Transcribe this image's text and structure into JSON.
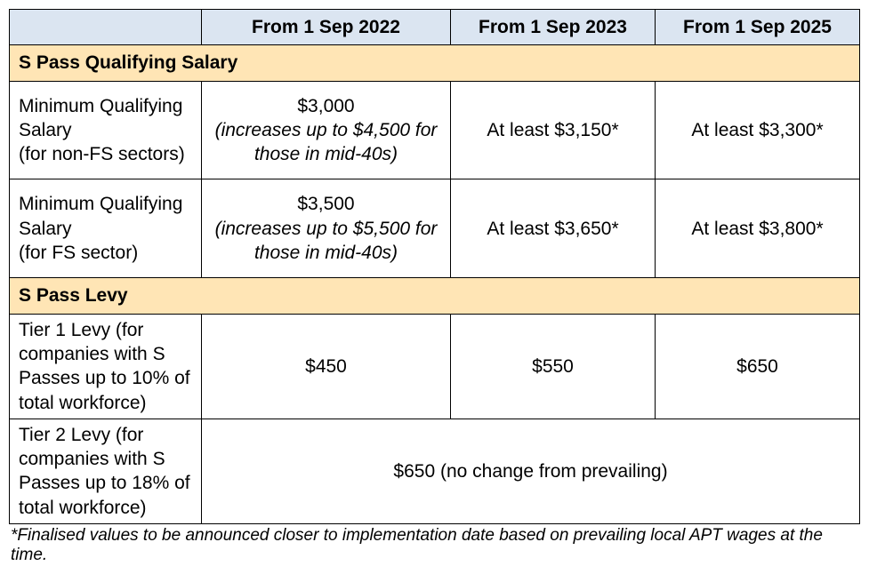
{
  "colors": {
    "header_bg": "#dbe5f1",
    "section_bg": "#ffe5b5",
    "border": "#000000",
    "text": "#000000"
  },
  "typography": {
    "font_family": "Arial",
    "cell_fontsize": 21,
    "footnote_fontsize": 19
  },
  "structure": "table",
  "headers": {
    "blank": "",
    "col1": "From 1 Sep 2022",
    "col2": "From 1 Sep 2023",
    "col3": "From 1 Sep 2025"
  },
  "sections": {
    "qualifying": {
      "title": "S Pass Qualifying Salary",
      "rows": [
        {
          "label": "Minimum Qualifying Salary\n(for non-FS sectors)",
          "c1_main": "$3,000",
          "c1_sub": "(increases up to $4,500 for those in mid-40s)",
          "c2": "At least $3,150*",
          "c3": "At least $3,300*"
        },
        {
          "label": "Minimum Qualifying Salary\n(for FS sector)",
          "c1_main": "$3,500",
          "c1_sub": "(increases up to $5,500 for those in mid-40s)",
          "c2": "At least $3,650*",
          "c3": "At least $3,800*"
        }
      ]
    },
    "levy": {
      "title": "S Pass Levy",
      "rows": [
        {
          "label": "Tier 1 Levy (for companies with S Passes up to 10% of total workforce)",
          "c1": "$450",
          "c2": "$550",
          "c3": "$650"
        },
        {
          "label": "Tier 2 Levy (for companies with S Passes up to 18% of total workforce)",
          "merged": "$650 (no change from prevailing)"
        }
      ]
    }
  },
  "footnote": "*Finalised values to be announced closer to implementation date based on prevailing local APT wages at the time."
}
